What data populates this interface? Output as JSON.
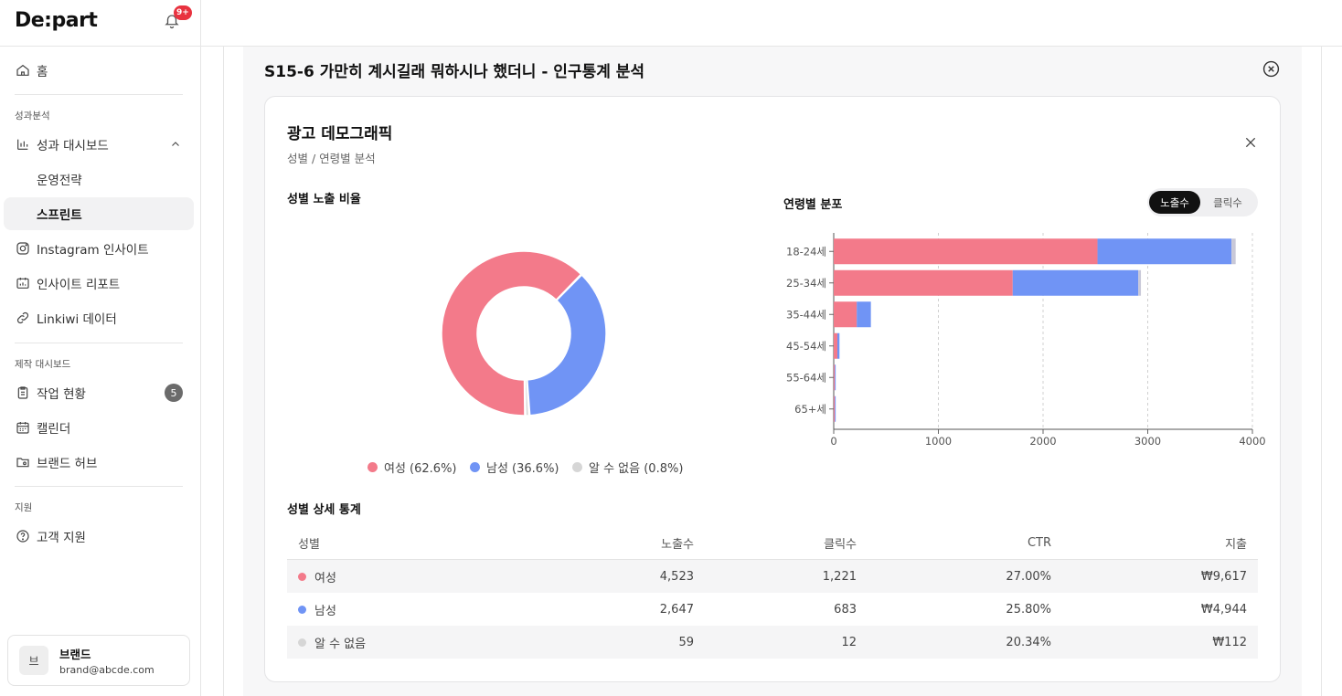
{
  "app": {
    "logo": "De:part",
    "notification_badge": "9+"
  },
  "sidebar": {
    "home": "홈",
    "section_performance": "성과분석",
    "dashboard": "성과 대시보드",
    "strategy": "운영전략",
    "sprint": "스프린트",
    "instagram": "Instagram 인사이트",
    "insight_report": "인사이트 리포트",
    "linkiwi": "Linkiwi 데이터",
    "section_production": "제작 대시보드",
    "work_status": "작업 현황",
    "work_count": "5",
    "calendar": "캘린더",
    "brand_hub": "브랜드 허브",
    "section_support": "지원",
    "customer_support": "고객 지원"
  },
  "user": {
    "avatar": "브",
    "name": "브랜드",
    "email": "brand@abcde.com"
  },
  "modal": {
    "title": "S15-6 가만히 계시길래 뭐하시나 했더니 - 인구통계 분석"
  },
  "card": {
    "title": "광고 데모그래픽",
    "subtitle": "성별 / 연령별 분석",
    "gender_ratio_title": "성별 노출 비율",
    "age_dist_title": "연령별 분포",
    "toggle_impressions": "노출수",
    "toggle_clicks": "클릭수",
    "table_title": "성별 상세 통계"
  },
  "colors": {
    "female": "#f37a8a",
    "male": "#7094f5",
    "unknown": "#d6d6d6",
    "third_bar": "#c8c8d8"
  },
  "chart_data": [
    {
      "type": "pie",
      "title": "성별 노출 비율",
      "labels": [
        "여성 (62.6%)",
        "남성 (36.6%)",
        "알 수 없음 (0.8%)"
      ],
      "values": [
        62.6,
        36.6,
        0.8
      ],
      "style": "donut",
      "legend": "bottom"
    },
    {
      "type": "bar",
      "orientation": "horizontal",
      "stacked": true,
      "title": "연령별 분포",
      "categories": [
        "18-24세",
        "25-34세",
        "35-44세",
        "45-54세",
        "55-64세",
        "65+세"
      ],
      "series": [
        {
          "values": [
            2520,
            1710,
            220,
            35,
            10,
            10
          ]
        },
        {
          "values": [
            1280,
            1200,
            135,
            20,
            5,
            5
          ]
        },
        {
          "values": [
            40,
            25,
            0,
            0,
            0,
            0
          ]
        }
      ],
      "xlim": [
        0,
        4000
      ],
      "xticks": [
        "0",
        "1000",
        "2000",
        "3000",
        "4000"
      ],
      "grid": "vertical-dashed"
    }
  ],
  "table": {
    "headers": [
      "성별",
      "노출수",
      "클릭수",
      "CTR",
      "지출"
    ],
    "rows": [
      {
        "gender": "여성",
        "impressions": "4,523",
        "clicks": "1,221",
        "ctr": "27.00%",
        "spend": "₩9,617"
      },
      {
        "gender": "남성",
        "impressions": "2,647",
        "clicks": "683",
        "ctr": "25.80%",
        "spend": "₩4,944"
      },
      {
        "gender": "알 수 없음",
        "impressions": "59",
        "clicks": "12",
        "ctr": "20.34%",
        "spend": "₩112"
      }
    ]
  }
}
